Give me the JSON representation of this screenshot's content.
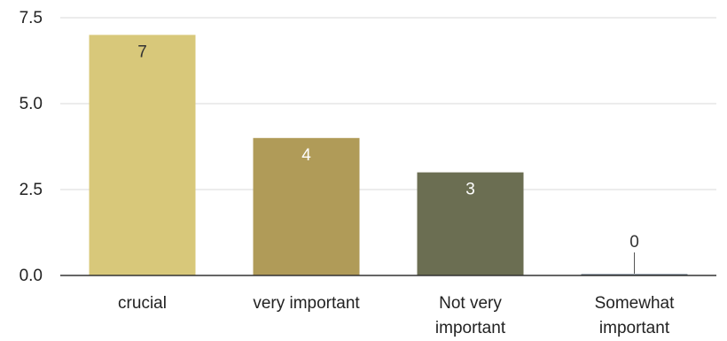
{
  "chart_data": {
    "type": "bar",
    "categories": [
      [
        "crucial"
      ],
      [
        "very important"
      ],
      [
        "Not very",
        "important"
      ],
      [
        "Somewhat",
        "important"
      ]
    ],
    "values": [
      7,
      4,
      3,
      0
    ],
    "data_labels": [
      "7",
      "4",
      "3",
      "0"
    ],
    "colors": [
      "#d8c87a",
      "#b09b58",
      "#6b6e52",
      "#4d5e70"
    ],
    "label_colors": [
      "#333333",
      "#ffffff",
      "#ffffff",
      "#333333"
    ],
    "ylim": [
      0,
      7.5
    ],
    "yticks": [
      0,
      2.5,
      5,
      7.5
    ],
    "ytick_labels": [
      "0.0",
      "2.5",
      "5.0",
      "7.5"
    ],
    "grid": true,
    "legend": "none"
  }
}
